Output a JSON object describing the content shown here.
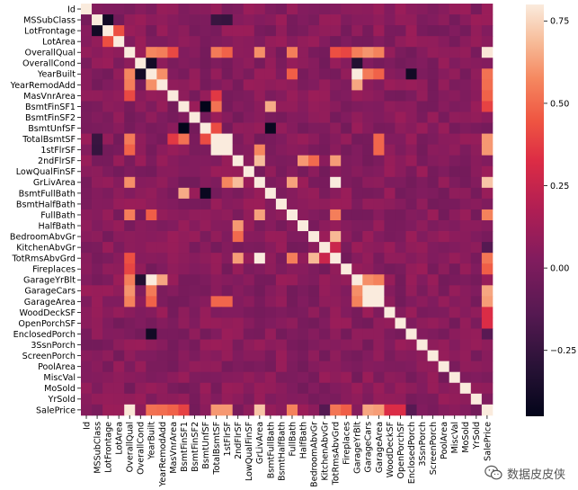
{
  "chart_data": {
    "type": "heatmap",
    "title": "",
    "labels": [
      "Id",
      "MSSubClass",
      "LotFrontage",
      "LotArea",
      "OverallQual",
      "OverallCond",
      "YearBuilt",
      "YearRemodAdd",
      "MasVnrArea",
      "BsmtFinSF1",
      "BsmtFinSF2",
      "BsmtUnfSF",
      "TotalBsmtSF",
      "1stFlrSF",
      "2ndFlrSF",
      "LowQualFinSF",
      "GrLivArea",
      "BsmtFullBath",
      "BsmtHalfBath",
      "FullBath",
      "HalfBath",
      "BedroomAbvGr",
      "KitchenAbvGr",
      "TotRmsAbvGrd",
      "Fireplaces",
      "GarageYrBlt",
      "GarageCars",
      "GarageArea",
      "WoodDeckSF",
      "OpenPorchSF",
      "EnclosedPorch",
      "3SsnPorch",
      "ScreenPorch",
      "PoolArea",
      "MiscVal",
      "MoSold",
      "YrSold",
      "SalePrice"
    ],
    "colorbar": {
      "min": -0.45,
      "max": 0.8,
      "ticks": [
        0.75,
        0.5,
        0.25,
        0.0,
        -0.25
      ],
      "tick_labels": [
        "0.75",
        "0.50",
        "0.25",
        "0.00",
        "−0.25"
      ],
      "cmap": "rocket"
    },
    "strong_correlations": [
      [
        "MSSubClass",
        "LotFrontage",
        -0.39
      ],
      [
        "LotFrontage",
        "LotArea",
        0.43
      ],
      [
        "OverallQual",
        "YearBuilt",
        0.57
      ],
      [
        "OverallQual",
        "YearRemodAdd",
        0.55
      ],
      [
        "OverallQual",
        "MasVnrArea",
        0.41
      ],
      [
        "OverallQual",
        "TotalBsmtSF",
        0.54
      ],
      [
        "OverallQual",
        "1stFlrSF",
        0.48
      ],
      [
        "OverallQual",
        "GrLivArea",
        0.59
      ],
      [
        "OverallQual",
        "FullBath",
        0.55
      ],
      [
        "OverallQual",
        "TotRmsAbvGrd",
        0.43
      ],
      [
        "OverallQual",
        "Fireplaces",
        0.4
      ],
      [
        "OverallQual",
        "GarageYrBlt",
        0.55
      ],
      [
        "OverallQual",
        "GarageCars",
        0.6
      ],
      [
        "OverallQual",
        "GarageArea",
        0.56
      ],
      [
        "OverallQual",
        "SalePrice",
        0.79
      ],
      [
        "OverallCond",
        "YearBuilt",
        -0.38
      ],
      [
        "OverallCond",
        "GarageYrBlt",
        -0.32
      ],
      [
        "YearBuilt",
        "YearRemodAdd",
        0.59
      ],
      [
        "YearBuilt",
        "GarageYrBlt",
        0.83
      ],
      [
        "YearBuilt",
        "GarageCars",
        0.54
      ],
      [
        "YearBuilt",
        "GarageArea",
        0.48
      ],
      [
        "YearBuilt",
        "FullBath",
        0.47
      ],
      [
        "YearBuilt",
        "EnclosedPorch",
        -0.39
      ],
      [
        "YearBuilt",
        "SalePrice",
        0.52
      ],
      [
        "YearRemodAdd",
        "GarageYrBlt",
        0.64
      ],
      [
        "YearRemodAdd",
        "SalePrice",
        0.51
      ],
      [
        "MasVnrArea",
        "TotalBsmtSF",
        0.36
      ],
      [
        "MasVnrArea",
        "SalePrice",
        0.48
      ],
      [
        "BsmtFinSF1",
        "BsmtUnfSF",
        -0.5
      ],
      [
        "BsmtFinSF1",
        "TotalBsmtSF",
        0.52
      ],
      [
        "BsmtFinSF1",
        "BsmtFullBath",
        0.65
      ],
      [
        "BsmtFinSF1",
        "SalePrice",
        0.39
      ],
      [
        "BsmtUnfSF",
        "TotalBsmtSF",
        0.42
      ],
      [
        "BsmtUnfSF",
        "BsmtFullBath",
        -0.42
      ],
      [
        "TotalBsmtSF",
        "1stFlrSF",
        0.82
      ],
      [
        "TotalBsmtSF",
        "GarageArea",
        0.49
      ],
      [
        "TotalBsmtSF",
        "SalePrice",
        0.61
      ],
      [
        "1stFlrSF",
        "GrLivArea",
        0.57
      ],
      [
        "1stFlrSF",
        "GarageArea",
        0.49
      ],
      [
        "1stFlrSF",
        "SalePrice",
        0.61
      ],
      [
        "2ndFlrSF",
        "GrLivArea",
        0.69
      ],
      [
        "2ndFlrSF",
        "HalfBath",
        0.61
      ],
      [
        "2ndFlrSF",
        "BedroomAbvGr",
        0.5
      ],
      [
        "2ndFlrSF",
        "TotRmsAbvGrd",
        0.62
      ],
      [
        "GrLivArea",
        "FullBath",
        0.63
      ],
      [
        "GrLivArea",
        "TotRmsAbvGrd",
        0.83
      ],
      [
        "GrLivArea",
        "SalePrice",
        0.71
      ],
      [
        "FullBath",
        "TotRmsAbvGrd",
        0.55
      ],
      [
        "FullBath",
        "SalePrice",
        0.56
      ],
      [
        "BedroomAbvGr",
        "TotRmsAbvGrd",
        0.68
      ],
      [
        "KitchenAbvGr",
        "TotRmsAbvGrd",
        0.26
      ],
      [
        "TotRmsAbvGrd",
        "SalePrice",
        0.53
      ],
      [
        "Fireplaces",
        "SalePrice",
        0.47
      ],
      [
        "GarageYrBlt",
        "GarageCars",
        0.59
      ],
      [
        "GarageYrBlt",
        "GarageArea",
        0.56
      ],
      [
        "GarageCars",
        "GarageArea",
        0.88
      ],
      [
        "GarageCars",
        "SalePrice",
        0.64
      ],
      [
        "GarageArea",
        "SalePrice",
        0.62
      ],
      [
        "WoodDeckSF",
        "SalePrice",
        0.32
      ],
      [
        "OpenPorchSF",
        "SalePrice",
        0.32
      ],
      [
        "EnclosedPorch",
        "SalePrice",
        -0.13
      ],
      [
        "KitchenAbvGr",
        "SalePrice",
        -0.14
      ],
      [
        "MSSubClass",
        "1stFlrSF",
        -0.25
      ],
      [
        "MSSubClass",
        "TotalBsmtSF",
        -0.24
      ]
    ]
  },
  "watermark": {
    "text": "数据皮皮侠",
    "icon": "wechat-icon"
  }
}
